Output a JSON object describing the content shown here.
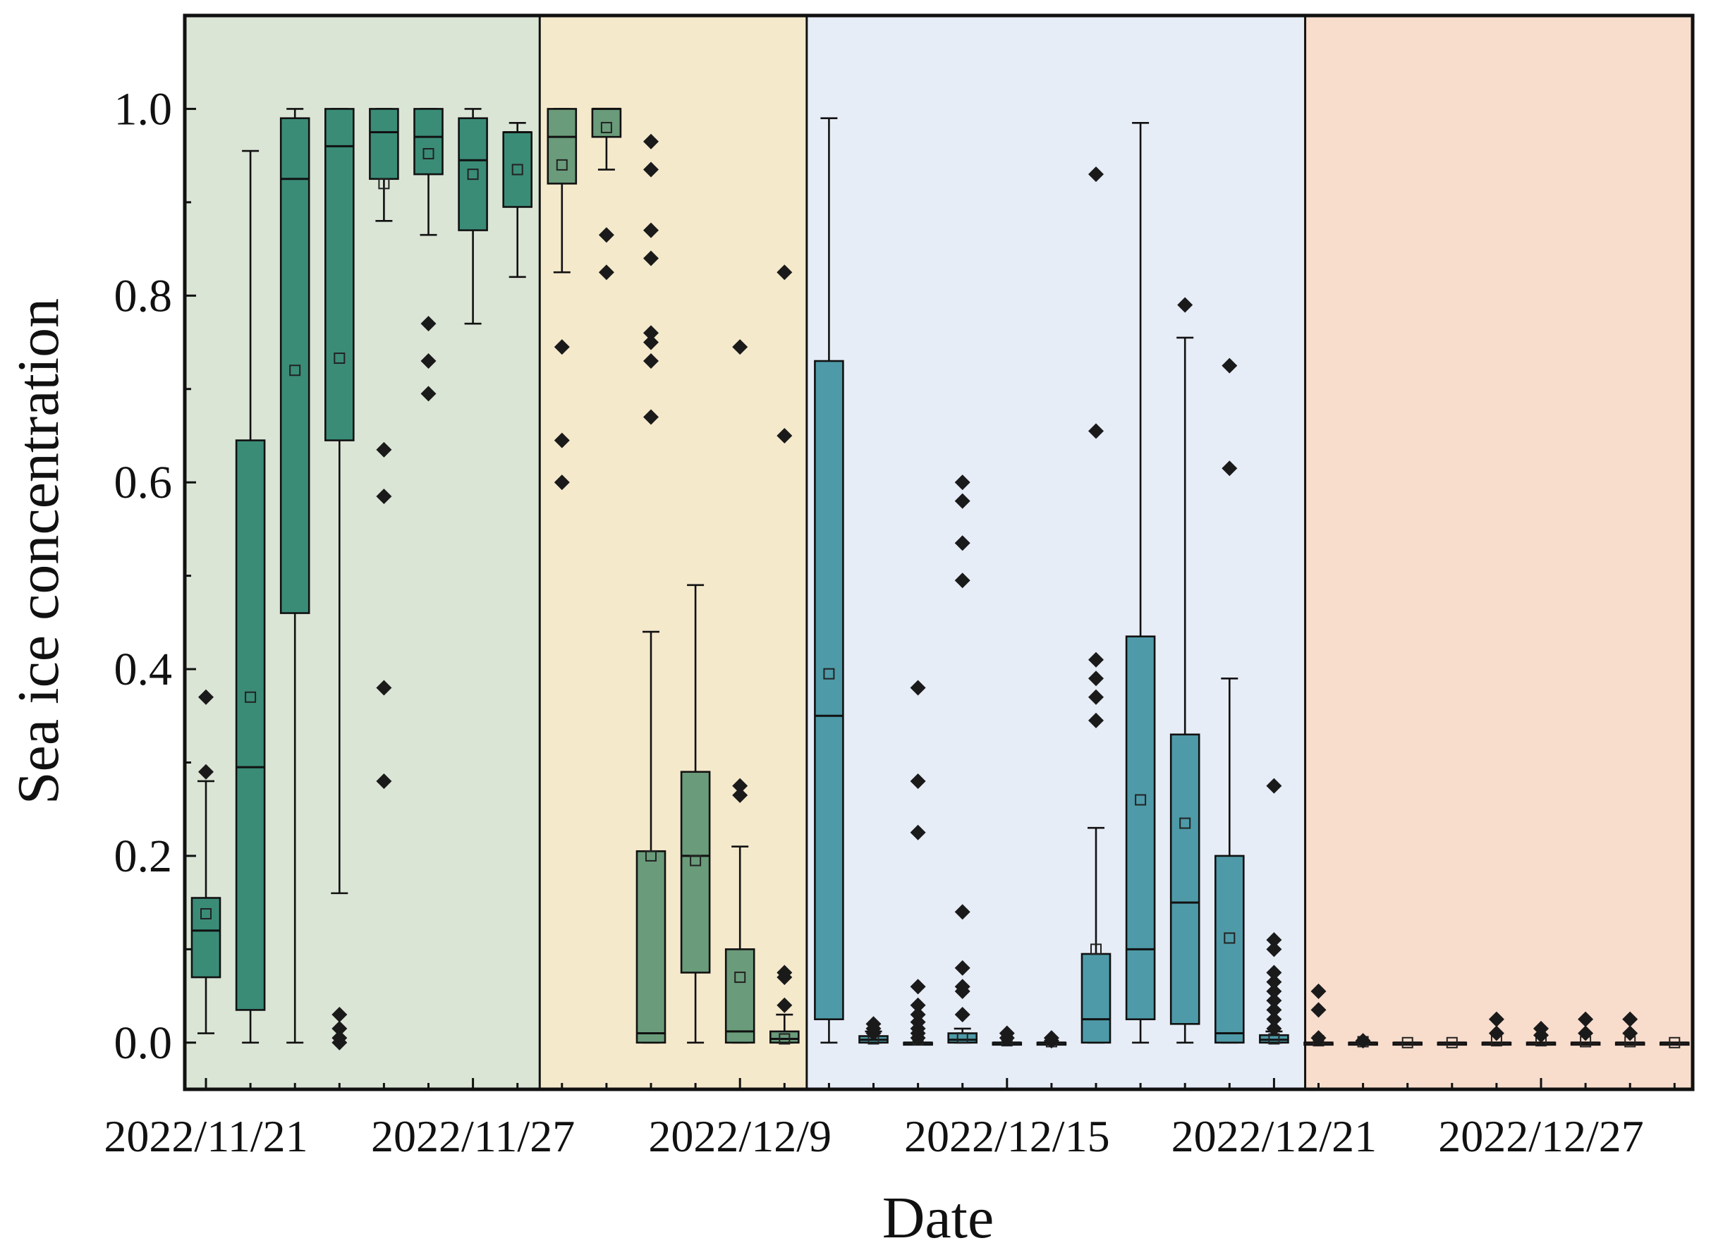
{
  "chart_data": {
    "type": "box",
    "title": "",
    "xlabel": "Date",
    "ylabel": "Sea ice concentration",
    "ylim": [
      -0.05,
      1.1
    ],
    "yticks": [
      "0.0",
      "0.2",
      "0.4",
      "0.6",
      "0.8",
      "1.0"
    ],
    "ytick_values": [
      0.0,
      0.2,
      0.4,
      0.6,
      0.8,
      1.0
    ],
    "xticks": [
      {
        "label": "2022/11/21",
        "index": 0
      },
      {
        "label": "2022/11/27",
        "index": 6
      },
      {
        "label": "2022/12/9",
        "index": 12
      },
      {
        "label": "2022/12/15",
        "index": 18
      },
      {
        "label": "2022/12/21",
        "index": 24
      },
      {
        "label": "2022/12/27",
        "index": 30
      }
    ],
    "n_positions": 34,
    "periods": [
      {
        "name": "period-1",
        "from": -0.5,
        "to": 7.5,
        "color": "#dbe5d6",
        "box_color": "#3a8c77"
      },
      {
        "name": "period-2",
        "from": 7.5,
        "to": 13.5,
        "color": "#f5e9cc",
        "box_color": "#6a9b7a"
      },
      {
        "name": "period-3",
        "from": 13.5,
        "to": 24.7,
        "color": "#e7edf7",
        "box_color": "#4e9aa8"
      },
      {
        "name": "period-4",
        "from": 24.7,
        "to": 33.4,
        "color": "#f8dccc",
        "box_color": "#b77a6b"
      }
    ],
    "boxes": [
      {
        "index": 0,
        "q1": 0.07,
        "median": 0.12,
        "q3": 0.155,
        "whisker_low": 0.01,
        "whisker_high": 0.28,
        "mean": 0.138,
        "outliers": [
          0.29,
          0.37
        ]
      },
      {
        "index": 1,
        "q1": 0.035,
        "median": 0.295,
        "q3": 0.645,
        "whisker_low": 0.0,
        "whisker_high": 0.955,
        "mean": 0.37,
        "outliers": []
      },
      {
        "index": 2,
        "q1": 0.46,
        "median": 0.925,
        "q3": 0.99,
        "whisker_low": 0.0,
        "whisker_high": 1.0,
        "mean": 0.72,
        "outliers": []
      },
      {
        "index": 3,
        "q1": 0.645,
        "median": 0.96,
        "q3": 1.0,
        "whisker_low": 0.16,
        "whisker_high": 1.0,
        "mean": 0.733,
        "outliers": [
          0.0,
          0.005,
          0.015,
          0.03
        ]
      },
      {
        "index": 4,
        "q1": 0.925,
        "median": 0.975,
        "q3": 1.0,
        "whisker_low": 0.88,
        "whisker_high": 1.0,
        "mean": 0.92,
        "outliers": [
          0.28,
          0.38,
          0.585,
          0.635
        ]
      },
      {
        "index": 5,
        "q1": 0.93,
        "median": 0.97,
        "q3": 1.0,
        "whisker_low": 0.865,
        "whisker_high": 1.0,
        "mean": 0.952,
        "outliers": [
          0.695,
          0.73,
          0.77
        ]
      },
      {
        "index": 6,
        "q1": 0.87,
        "median": 0.945,
        "q3": 0.99,
        "whisker_low": 0.77,
        "whisker_high": 1.0,
        "mean": 0.93,
        "outliers": []
      },
      {
        "index": 7,
        "q1": 0.895,
        "median": 0.975,
        "q3": 0.975,
        "whisker_low": 0.82,
        "whisker_high": 0.985,
        "mean": 0.935,
        "outliers": []
      },
      {
        "index": 8,
        "q1": 0.92,
        "median": 0.97,
        "q3": 1.0,
        "whisker_low": 0.825,
        "whisker_high": 1.0,
        "mean": 0.94,
        "outliers": [
          0.6,
          0.645,
          0.745
        ]
      },
      {
        "index": 9,
        "q1": 0.97,
        "median": 1.0,
        "q3": 1.0,
        "whisker_low": 0.935,
        "whisker_high": 1.0,
        "mean": 0.98,
        "outliers": [
          0.825,
          0.865
        ]
      },
      {
        "index": 10,
        "q1": 0.0,
        "median": 0.01,
        "q3": 0.205,
        "whisker_low": 0.0,
        "whisker_high": 0.44,
        "mean": 0.2,
        "outliers": [
          0.67,
          0.73,
          0.75,
          0.76,
          0.84,
          0.87,
          0.935,
          0.965
        ]
      },
      {
        "index": 11,
        "q1": 0.075,
        "median": 0.2,
        "q3": 0.29,
        "whisker_low": 0.0,
        "whisker_high": 0.49,
        "mean": 0.195,
        "outliers": []
      },
      {
        "index": 12,
        "q1": 0.0,
        "median": 0.012,
        "q3": 0.1,
        "whisker_low": 0.0,
        "whisker_high": 0.21,
        "mean": 0.07,
        "outliers": [
          0.265,
          0.275,
          0.745
        ]
      },
      {
        "index": 13,
        "q1": 0.0,
        "median": 0.004,
        "q3": 0.012,
        "whisker_low": 0.0,
        "whisker_high": 0.03,
        "mean": 0.004,
        "outliers": [
          0.04,
          0.07,
          0.075,
          0.65,
          0.825
        ]
      },
      {
        "index": 14,
        "q1": 0.025,
        "median": 0.35,
        "q3": 0.73,
        "whisker_low": 0.0,
        "whisker_high": 0.99,
        "mean": 0.395,
        "outliers": []
      },
      {
        "index": 15,
        "q1": 0.0,
        "median": 0.003,
        "q3": 0.007,
        "whisker_low": 0.0,
        "whisker_high": 0.012,
        "mean": 0.004,
        "outliers": [
          0.01,
          0.015,
          0.02
        ]
      },
      {
        "index": 16,
        "q1": 0.0,
        "median": 0.0,
        "q3": 0.0,
        "whisker_low": 0.0,
        "whisker_high": 0.0,
        "mean": 0.003,
        "outliers": [
          0.005,
          0.01,
          0.015,
          0.022,
          0.03,
          0.04,
          0.06,
          0.225,
          0.28,
          0.38
        ]
      },
      {
        "index": 17,
        "q1": 0.0,
        "median": 0.003,
        "q3": 0.01,
        "whisker_low": 0.0,
        "whisker_high": 0.015,
        "mean": 0.005,
        "outliers": [
          0.03,
          0.055,
          0.06,
          0.08,
          0.14,
          0.495,
          0.535,
          0.58,
          0.6
        ]
      },
      {
        "index": 18,
        "q1": 0.0,
        "median": 0.0,
        "q3": 0.0,
        "whisker_low": 0.0,
        "whisker_high": 0.0,
        "mean": 0.002,
        "outliers": [
          0.005,
          0.01
        ]
      },
      {
        "index": 19,
        "q1": 0.0,
        "median": 0.0,
        "q3": 0.0,
        "whisker_low": 0.0,
        "whisker_high": 0.0,
        "mean": 0.001,
        "outliers": [
          0.002,
          0.005
        ]
      },
      {
        "index": 20,
        "q1": 0.0,
        "median": 0.025,
        "q3": 0.095,
        "whisker_low": 0.0,
        "whisker_high": 0.23,
        "mean": 0.1,
        "outliers": [
          0.345,
          0.37,
          0.39,
          0.41,
          0.655,
          0.93
        ]
      },
      {
        "index": 21,
        "q1": 0.025,
        "median": 0.1,
        "q3": 0.435,
        "whisker_low": 0.0,
        "whisker_high": 0.985,
        "mean": 0.26,
        "outliers": []
      },
      {
        "index": 22,
        "q1": 0.02,
        "median": 0.15,
        "q3": 0.33,
        "whisker_low": 0.0,
        "whisker_high": 0.755,
        "mean": 0.235,
        "outliers": [
          0.79
        ]
      },
      {
        "index": 23,
        "q1": 0.0,
        "median": 0.01,
        "q3": 0.2,
        "whisker_low": 0.0,
        "whisker_high": 0.39,
        "mean": 0.112,
        "outliers": [
          0.615,
          0.725
        ]
      },
      {
        "index": 24,
        "q1": 0.0,
        "median": 0.003,
        "q3": 0.008,
        "whisker_low": 0.0,
        "whisker_high": 0.012,
        "mean": 0.004,
        "outliers": [
          0.015,
          0.025,
          0.035,
          0.045,
          0.055,
          0.065,
          0.075,
          0.1,
          0.11,
          0.275
        ]
      },
      {
        "index": 25,
        "q1": 0.0,
        "median": 0.0,
        "q3": 0.0,
        "whisker_low": 0.0,
        "whisker_high": 0.0,
        "mean": 0.002,
        "outliers": [
          0.005,
          0.035,
          0.055
        ]
      },
      {
        "index": 26,
        "q1": 0.0,
        "median": 0.0,
        "q3": 0.0,
        "whisker_low": 0.0,
        "whisker_high": 0.0,
        "mean": 0.001,
        "outliers": [
          0.002
        ]
      },
      {
        "index": 27,
        "q1": 0.0,
        "median": 0.0,
        "q3": 0.0,
        "whisker_low": 0.0,
        "whisker_high": 0.0,
        "mean": 0.0,
        "outliers": []
      },
      {
        "index": 28,
        "q1": 0.0,
        "median": 0.0,
        "q3": 0.0,
        "whisker_low": 0.0,
        "whisker_high": 0.0,
        "mean": 0.0,
        "outliers": []
      },
      {
        "index": 29,
        "q1": 0.0,
        "median": 0.0,
        "q3": 0.0,
        "whisker_low": 0.0,
        "whisker_high": 0.0,
        "mean": 0.002,
        "outliers": [
          0.01,
          0.025
        ]
      },
      {
        "index": 30,
        "q1": 0.0,
        "median": 0.0,
        "q3": 0.0,
        "whisker_low": 0.0,
        "whisker_high": 0.0,
        "mean": 0.002,
        "outliers": [
          0.008,
          0.015
        ]
      },
      {
        "index": 31,
        "q1": 0.0,
        "median": 0.0,
        "q3": 0.0,
        "whisker_low": 0.0,
        "whisker_high": 0.0,
        "mean": 0.001,
        "outliers": [
          0.01,
          0.025
        ]
      },
      {
        "index": 32,
        "q1": 0.0,
        "median": 0.0,
        "q3": 0.0,
        "whisker_low": 0.0,
        "whisker_high": 0.0,
        "mean": 0.001,
        "outliers": [
          0.01,
          0.025
        ]
      },
      {
        "index": 33,
        "q1": 0.0,
        "median": 0.0,
        "q3": 0.0,
        "whisker_low": 0.0,
        "whisker_high": 0.0,
        "mean": 0.0,
        "outliers": []
      }
    ]
  }
}
